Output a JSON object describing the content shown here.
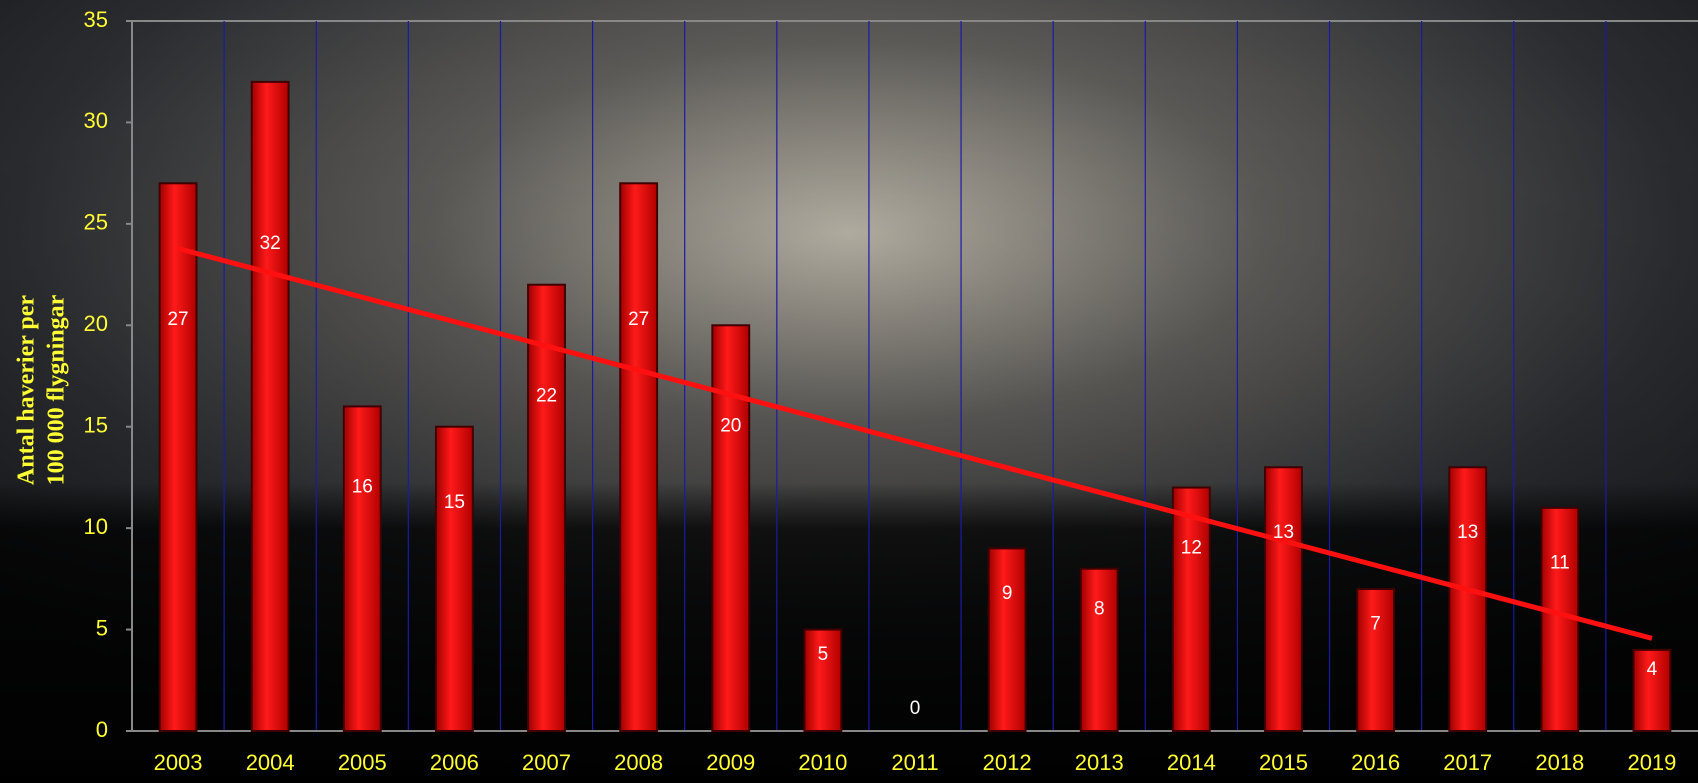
{
  "chart_data": {
    "type": "bar",
    "y_label": [
      "Antal haverier per",
      "100 000 flygningar"
    ],
    "categories": [
      "2003",
      "2004",
      "2005",
      "2006",
      "2007",
      "2008",
      "2009",
      "2010",
      "2011",
      "2012",
      "2013",
      "2014",
      "2015",
      "2016",
      "2017",
      "2018",
      "2019"
    ],
    "values": [
      27,
      32,
      16,
      15,
      22,
      27,
      20,
      5,
      0,
      9,
      8,
      12,
      13,
      7,
      13,
      11,
      4
    ],
    "color": "#ee0000",
    "ylim": [
      0,
      35
    ],
    "yticks": [
      0,
      5,
      10,
      15,
      20,
      25,
      30,
      35
    ],
    "grid": "vertical",
    "grid_color": "#1a1aa8",
    "trendline": true,
    "trendline_color": "#ff1010",
    "tick_color": "#ffff33"
  }
}
